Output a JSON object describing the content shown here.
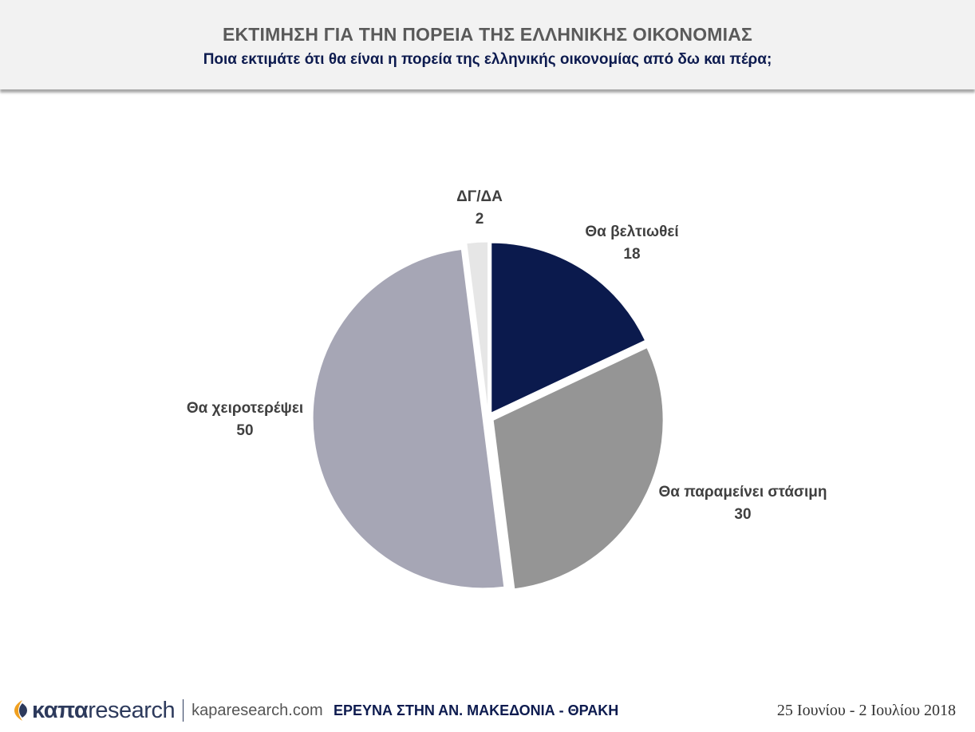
{
  "header": {
    "title": "ΕΚΤΙΜΗΣΗ ΓΙΑ ΤΗΝ ΠΟΡΕΙΑ ΤΗΣ ΕΛΛΗΝΙΚΗΣ ΟΙΚΟΝΟΜΙΑΣ",
    "subtitle": "Ποια εκτιμάτε ότι θα είναι η πορεία της ελληνικής οικονομίας από δω και πέρα;"
  },
  "chart_data": {
    "type": "pie",
    "title": "ΕΚΤΙΜΗΣΗ ΓΙΑ ΤΗΝ ΠΟΡΕΙΑ ΤΗΣ ΕΛΛΗΝΙΚΗΣ ΟΙΚΟΝΟΜΙΑΣ",
    "subtitle": "Ποια εκτιμάτε ότι θα είναι η πορεία της ελληνικής οικονομίας από δω και πέρα;",
    "slices": [
      {
        "label": "Θα βελτιωθεί",
        "value": 18,
        "color": "#0b1a4d"
      },
      {
        "label": "Θα παραμείνει στάσιμη",
        "value": 30,
        "color": "#959595"
      },
      {
        "label": "Θα χειροτερέψει",
        "value": 50,
        "color": "#a6a6b5"
      },
      {
        "label": "ΔΓ/ΔΑ",
        "value": 2,
        "color": "#e6e6e6"
      }
    ],
    "start_angle": "12 o'clock, clockwise",
    "exploded": true,
    "legend": "none (data labels outside slices)"
  },
  "footer": {
    "brand": "καπα",
    "brand_suffix": "research",
    "url": "kaparesearch.com",
    "survey": "ΕΡΕΥΝΑ ΣΤΗΝ ΑΝ. ΜΑΚΕΔΟΝΙΑ - ΘΡΑΚΗ",
    "date": "25 Ιουνίου - 2 Ιουλίου 2018"
  },
  "icons": {
    "logo": "kapa-logo-icon"
  },
  "colors": {
    "title": "#5a5a5a",
    "subtitle": "#0d1b4f",
    "header_bg": "#f2f2f2"
  }
}
